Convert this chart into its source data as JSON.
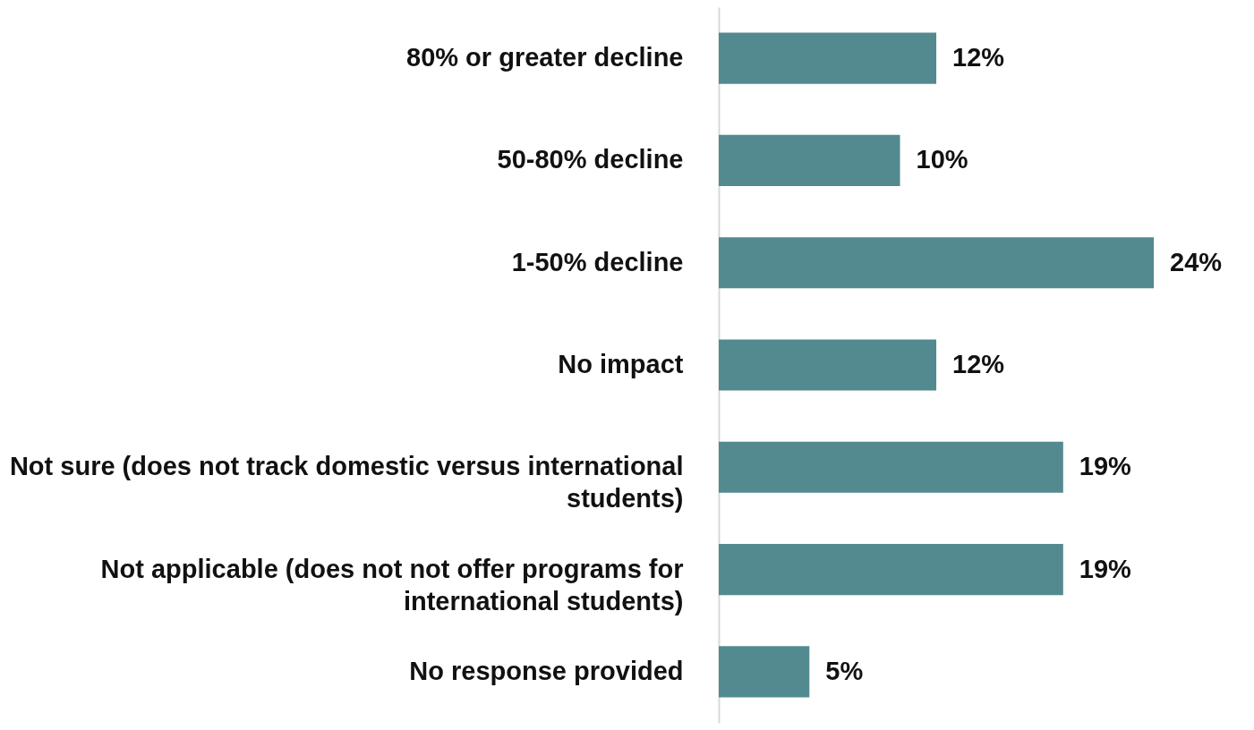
{
  "chart_data": {
    "type": "bar",
    "orientation": "horizontal",
    "categories": [
      "80% or greater decline",
      "50-80% decline",
      "1-50% decline",
      "No impact",
      "Not sure (does not track domestic versus international\nstudents)",
      "Not applicable (does not not offer programs for\ninternational students)",
      "No response provided"
    ],
    "values": [
      12,
      10,
      24,
      12,
      19,
      19,
      5
    ],
    "value_labels": [
      "12%",
      "10%",
      "24%",
      "12%",
      "19%",
      "19%",
      "5%"
    ],
    "color": "#528a8f"
  }
}
